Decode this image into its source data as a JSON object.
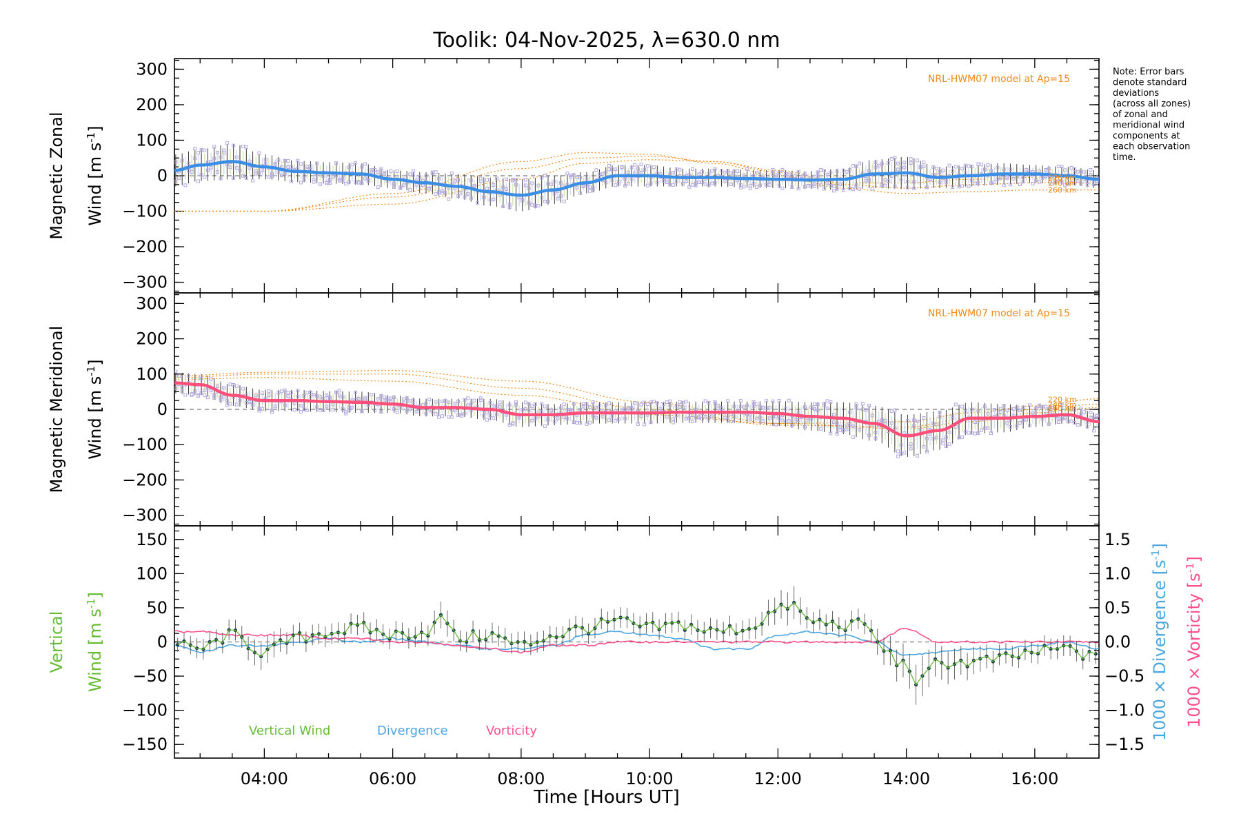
{
  "title": "Toolik: 04-Nov-2025, λ=630.0 nm",
  "note": [
    "Note: Error bars",
    "denote standard",
    "deviations",
    "(across all zones)",
    "of zonal and",
    "meridional wind",
    "components at",
    "each observation",
    "time."
  ],
  "colors": {
    "zonal": "#3a8ee6",
    "meridional": "#ff4f7a",
    "vertical": "#66bb33",
    "divergence": "#4ba6e0",
    "vorticity": "#ff4f8a",
    "model": "#f08a1a",
    "scatter": "#b3a8e0"
  },
  "chart_data": [
    {
      "type": "line",
      "panel": "zonal",
      "title": "Toolik: 04-Nov-2025, λ=630.0 nm",
      "ylabel_line1": "Magnetic Zonal",
      "ylabel_line2": "Wind",
      "ylabel_units": "[m s",
      "ylabel_exp": "-1",
      "ylabel_close": "]",
      "xlim": [
        2.6,
        17.0
      ],
      "ylim": [
        -330,
        330
      ],
      "yticks": [
        300,
        200,
        100,
        0,
        -100,
        -200,
        -300
      ],
      "ytick_labels": [
        "300",
        "200",
        "100",
        "0",
        "−100",
        "−200",
        "−300"
      ],
      "model_label": "NRL-HWM07 model at Ap=15",
      "altitude_labels": [
        "220 km",
        "240 km",
        "260 km"
      ],
      "series": [
        {
          "name": "Zonal wind",
          "x": [
            2.6,
            3.0,
            3.5,
            4.0,
            4.5,
            5.0,
            5.5,
            6.0,
            6.5,
            7.0,
            7.5,
            8.0,
            8.5,
            9.0,
            9.5,
            10.0,
            10.5,
            11.0,
            11.5,
            12.0,
            12.5,
            13.0,
            13.5,
            14.0,
            14.5,
            15.0,
            15.5,
            16.0,
            16.5,
            17.0
          ],
          "values": [
            15,
            30,
            40,
            25,
            12,
            8,
            5,
            -10,
            -20,
            -30,
            -45,
            -55,
            -40,
            -20,
            0,
            0,
            -5,
            -5,
            -8,
            -10,
            -12,
            -10,
            5,
            8,
            -5,
            0,
            5,
            5,
            0,
            -10
          ],
          "errors": [
            45,
            45,
            50,
            35,
            30,
            30,
            30,
            25,
            30,
            35,
            40,
            45,
            40,
            30,
            30,
            30,
            25,
            25,
            25,
            25,
            25,
            30,
            40,
            45,
            30,
            30,
            30,
            25,
            25,
            25
          ]
        },
        {
          "name": "220 km",
          "x": [
            2.6,
            4,
            6,
            8,
            9,
            10,
            11,
            12,
            13,
            14,
            15,
            16,
            17
          ],
          "values": [
            -100,
            -100,
            -80,
            -10,
            35,
            45,
            40,
            15,
            -20,
            -20,
            -10,
            -5,
            -5
          ]
        },
        {
          "name": "240 km",
          "x": [
            2.6,
            4,
            6,
            8,
            9,
            10,
            11,
            12,
            13,
            14,
            15,
            16,
            17
          ],
          "values": [
            -100,
            -100,
            -60,
            20,
            50,
            55,
            40,
            10,
            -25,
            -35,
            -25,
            -20,
            -20
          ]
        },
        {
          "name": "260 km",
          "x": [
            2.6,
            4,
            6,
            8,
            9,
            10,
            11,
            12,
            13,
            14,
            15,
            16,
            17
          ],
          "values": [
            -100,
            -100,
            -50,
            40,
            65,
            60,
            35,
            0,
            -35,
            -50,
            -45,
            -40,
            -40
          ]
        }
      ]
    },
    {
      "type": "line",
      "panel": "meridional",
      "ylabel_line1": "Magnetic Meridional",
      "ylabel_line2": "Wind",
      "ylabel_units": "[m s",
      "ylabel_exp": "-1",
      "ylabel_close": "]",
      "xlim": [
        2.6,
        17.0
      ],
      "ylim": [
        -330,
        330
      ],
      "yticks": [
        300,
        200,
        100,
        0,
        -100,
        -200,
        -300
      ],
      "ytick_labels": [
        "300",
        "200",
        "100",
        "0",
        "−100",
        "−200",
        "−300"
      ],
      "model_label": "NRL-HWM07 model at Ap=15",
      "altitude_labels": [
        "220 km",
        "240 km",
        "260 km"
      ],
      "series": [
        {
          "name": "Meridional wind",
          "x": [
            2.6,
            3.0,
            3.5,
            4.0,
            4.5,
            5.0,
            5.5,
            6.0,
            6.5,
            7.0,
            7.5,
            8.0,
            8.5,
            9.0,
            9.5,
            10.0,
            10.5,
            11.0,
            11.5,
            12.0,
            12.5,
            13.0,
            13.5,
            14.0,
            14.5,
            15.0,
            15.5,
            16.0,
            16.5,
            17.0
          ],
          "values": [
            75,
            70,
            40,
            25,
            25,
            22,
            20,
            15,
            5,
            5,
            0,
            -15,
            -15,
            -10,
            -10,
            -10,
            -8,
            -8,
            -8,
            -12,
            -20,
            -25,
            -40,
            -75,
            -60,
            -25,
            -25,
            -20,
            -15,
            -35
          ],
          "errors": [
            30,
            30,
            30,
            30,
            30,
            30,
            30,
            25,
            25,
            25,
            30,
            35,
            30,
            30,
            30,
            30,
            30,
            30,
            30,
            35,
            40,
            45,
            50,
            60,
            55,
            45,
            40,
            30,
            25,
            25
          ]
        },
        {
          "name": "220 km",
          "x": [
            2.6,
            4,
            6,
            8,
            10,
            12,
            14,
            15,
            16,
            17
          ],
          "values": [
            85,
            90,
            80,
            40,
            -15,
            -40,
            -35,
            -10,
            10,
            30
          ]
        },
        {
          "name": "240 km",
          "x": [
            2.6,
            4,
            6,
            8,
            10,
            12,
            14,
            15,
            16,
            17
          ],
          "values": [
            90,
            100,
            100,
            60,
            0,
            -45,
            -50,
            -25,
            0,
            15
          ]
        },
        {
          "name": "260 km",
          "x": [
            2.6,
            4,
            6,
            8,
            10,
            12,
            14,
            15,
            16,
            17
          ],
          "values": [
            95,
            105,
            110,
            80,
            20,
            -40,
            -55,
            -35,
            -10,
            5
          ]
        }
      ]
    },
    {
      "type": "line",
      "panel": "vertical",
      "ylabel_line1": "Vertical",
      "ylabel_line2": "Wind",
      "ylabel_units": "[m s",
      "ylabel_exp": "-1",
      "ylabel_close": "]",
      "xlabel": "Time [Hours UT]",
      "xlim": [
        2.6,
        17.0
      ],
      "ylim": [
        -170,
        170
      ],
      "yticks": [
        150,
        100,
        50,
        0,
        -50,
        -100,
        -150
      ],
      "ytick_labels": [
        "150",
        "100",
        "50",
        "0",
        "−50",
        "−100",
        "−150"
      ],
      "xticks": [
        4,
        6,
        8,
        10,
        12,
        14,
        16
      ],
      "xtick_labels": [
        "04:00",
        "06:00",
        "08:00",
        "10:00",
        "12:00",
        "14:00",
        "16:00"
      ],
      "y2lim": [
        -1.7,
        1.7
      ],
      "y2ticks": [
        1.5,
        1.0,
        0.5,
        0.0,
        -0.5,
        -1.0,
        -1.5
      ],
      "y2tick_labels": [
        "1.5",
        "1.0",
        "0.5",
        "0.0",
        "−0.5",
        "−1.0",
        "−1.5"
      ],
      "y2label_div_text": "1000 × Divergence",
      "y2label_vort_text": "1000 × Vorticity",
      "y2label_units": "[s",
      "y2label_exp": "-1",
      "y2label_close": "]",
      "legend": [
        "Vertical Wind",
        "Divergence",
        "Vorticity"
      ],
      "series": [
        {
          "name": "Vertical Wind",
          "axis": "left",
          "x": [
            2.6,
            3.0,
            3.5,
            4.0,
            4.5,
            5.0,
            5.5,
            6.0,
            6.5,
            6.8,
            7.0,
            7.5,
            8.0,
            8.5,
            9.0,
            9.5,
            10.0,
            10.5,
            11.0,
            11.5,
            12.0,
            12.2,
            12.5,
            13.0,
            13.4,
            13.6,
            14.0,
            14.2,
            14.5,
            15.0,
            15.5,
            16.0,
            16.5,
            17.0
          ],
          "values": [
            -5,
            -10,
            10,
            -15,
            5,
            15,
            20,
            10,
            15,
            35,
            5,
            10,
            -5,
            10,
            20,
            30,
            20,
            25,
            15,
            20,
            45,
            55,
            30,
            25,
            25,
            -10,
            -35,
            -60,
            -30,
            -30,
            -25,
            -15,
            -10,
            -25
          ],
          "errors": [
            10,
            15,
            15,
            20,
            15,
            15,
            15,
            15,
            15,
            20,
            15,
            15,
            15,
            15,
            15,
            15,
            15,
            15,
            15,
            15,
            20,
            25,
            15,
            15,
            15,
            20,
            25,
            30,
            25,
            20,
            15,
            15,
            15,
            15
          ]
        },
        {
          "name": "Divergence",
          "axis": "right",
          "x": [
            2.6,
            3.0,
            3.5,
            4.0,
            4.5,
            5.0,
            5.5,
            6.0,
            6.5,
            7.0,
            7.5,
            8.0,
            8.5,
            9.0,
            9.5,
            10.0,
            10.5,
            11.0,
            11.5,
            12.0,
            12.5,
            13.0,
            13.5,
            14.0,
            14.5,
            15.0,
            15.5,
            16.0,
            16.5,
            17.0
          ],
          "values": [
            -0.05,
            -0.15,
            -0.05,
            -0.05,
            0.0,
            0.05,
            0.0,
            0.05,
            0.0,
            -0.05,
            -0.1,
            -0.1,
            -0.05,
            0.1,
            0.15,
            0.1,
            0.05,
            -0.1,
            -0.1,
            0.1,
            0.15,
            0.1,
            0.0,
            -0.2,
            -0.15,
            -0.1,
            -0.1,
            -0.05,
            0.0,
            -0.1
          ]
        },
        {
          "name": "Vorticity",
          "axis": "right",
          "x": [
            2.6,
            3.0,
            3.5,
            4.0,
            4.5,
            5.0,
            5.5,
            6.0,
            6.5,
            7.0,
            7.5,
            8.0,
            8.5,
            9.0,
            9.5,
            10.0,
            10.5,
            11.0,
            11.5,
            12.0,
            12.5,
            13.0,
            13.5,
            14.0,
            14.5,
            15.0,
            15.5,
            16.0,
            16.5,
            17.0
          ],
          "values": [
            0.15,
            0.15,
            0.1,
            0.1,
            0.1,
            0.05,
            0.05,
            0.0,
            0.0,
            -0.05,
            -0.1,
            -0.15,
            -0.05,
            -0.05,
            0.0,
            0.0,
            0.0,
            0.0,
            0.0,
            0.0,
            0.0,
            0.0,
            0.0,
            0.2,
            0.0,
            0.0,
            0.0,
            0.0,
            0.0,
            0.0
          ]
        }
      ]
    }
  ]
}
